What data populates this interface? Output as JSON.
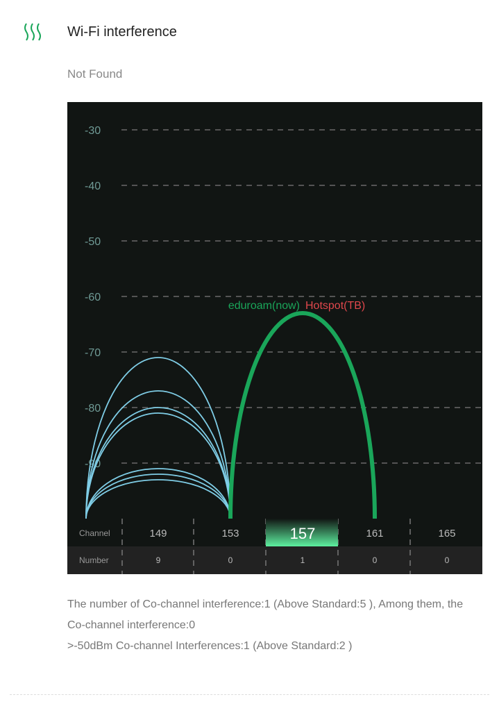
{
  "header": {
    "title": "Wi-Fi interference",
    "icon": "wifi-interference-icon",
    "status": "Not Found"
  },
  "colors": {
    "accent": "#1aa65a",
    "neighbor_arcs": "#7fcde6",
    "highlight_label": "#e0474c"
  },
  "chart_data": {
    "type": "arc",
    "ylim": [
      -100,
      -25
    ],
    "y_ticks": [
      -30,
      -40,
      -50,
      -60,
      -70,
      -80,
      -90
    ],
    "grid": true,
    "channels": [
      "149",
      "153",
      "157",
      "161",
      "165"
    ],
    "numbers": [
      "9",
      "0",
      "1",
      "0",
      "0"
    ],
    "row_labels": {
      "channel": "Channel",
      "number": "Number"
    },
    "selected_channel": "157",
    "neighbors": [
      {
        "from": 145,
        "to": 153,
        "peak": -71
      },
      {
        "from": 145,
        "to": 153,
        "peak": -77
      },
      {
        "from": 145,
        "to": 153,
        "peak": -80
      },
      {
        "from": 145,
        "to": 153,
        "peak": -81
      },
      {
        "from": 145,
        "to": 153,
        "peak": -91
      },
      {
        "from": 145,
        "to": 153,
        "peak": -92
      },
      {
        "from": 145,
        "to": 153,
        "peak": -93
      }
    ],
    "current": {
      "from": 153,
      "to": 161,
      "peak": -63,
      "label": "eduroam(now)",
      "label2": "Hotspot(TB)"
    }
  },
  "description": {
    "line1": "The number of Co-channel interference:1 (Above Standard:5 ), Among them, the Co-channel interference:0",
    "line2": ">-50dBm Co-channel Interferences:1 (Above Standard:2 )"
  }
}
